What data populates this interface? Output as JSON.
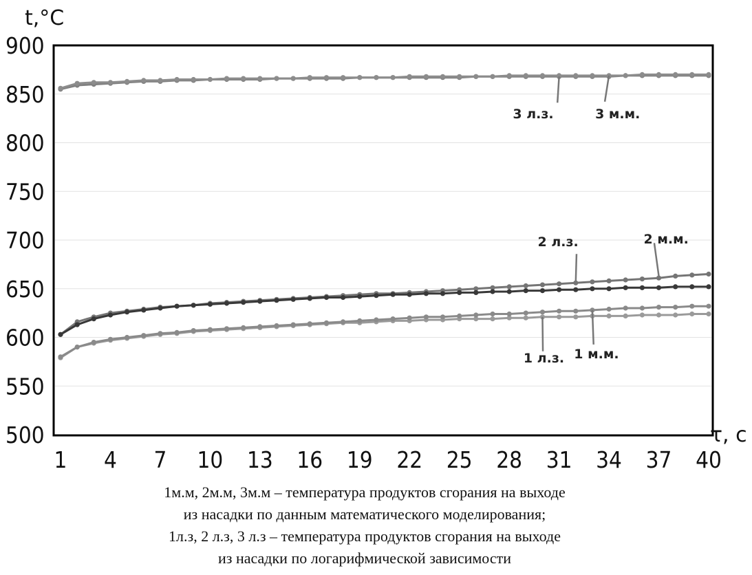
{
  "chart_data": {
    "type": "line",
    "ylabel": "t,°C",
    "xlabel": "τ, с",
    "ylim": [
      500,
      900
    ],
    "xlim": [
      1,
      40
    ],
    "grid": "horizontal",
    "yticks": [
      "500",
      "550",
      "600",
      "650",
      "700",
      "750",
      "800",
      "850",
      "900"
    ],
    "xticks": [
      "1",
      "4",
      "7",
      "10",
      "13",
      "16",
      "19",
      "22",
      "25",
      "28",
      "31",
      "34",
      "37",
      "40"
    ],
    "x": [
      1,
      2,
      3,
      4,
      5,
      6,
      7,
      8,
      9,
      10,
      11,
      12,
      13,
      14,
      15,
      16,
      17,
      18,
      19,
      20,
      21,
      22,
      23,
      24,
      25,
      26,
      27,
      28,
      29,
      30,
      31,
      32,
      33,
      34,
      35,
      36,
      37,
      38,
      39,
      40
    ],
    "series": [
      {
        "name": "3 л.з.",
        "color": "#808080",
        "values": [
          855,
          859,
          860,
          861,
          862,
          863,
          863,
          864,
          864,
          865,
          865,
          865,
          865,
          866,
          866,
          866,
          866,
          866,
          867,
          867,
          867,
          867,
          867,
          867,
          867,
          868,
          868,
          868,
          868,
          868,
          868,
          868,
          868,
          868,
          869,
          869,
          869,
          869,
          869,
          869
        ]
      },
      {
        "name": "3 м.м.",
        "color": "#8c8c8c",
        "values": [
          856,
          861,
          862,
          862,
          863,
          864,
          864,
          865,
          865,
          865,
          866,
          866,
          866,
          866,
          866,
          867,
          867,
          867,
          867,
          867,
          867,
          868,
          868,
          868,
          868,
          868,
          868,
          869,
          869,
          869,
          869,
          869,
          869,
          869,
          869,
          870,
          870,
          870,
          870,
          870
        ]
      },
      {
        "name": "2 л.з.",
        "color": "#757575",
        "values": [
          603,
          616,
          621,
          625,
          627,
          629,
          631,
          632,
          633,
          635,
          636,
          637,
          638,
          639,
          640,
          641,
          642,
          643,
          644,
          645,
          645,
          646,
          647,
          648,
          649,
          650,
          651,
          652,
          653,
          654,
          655,
          656,
          657,
          658,
          659,
          660,
          661,
          663,
          664,
          665
        ]
      },
      {
        "name": "2 м.м.",
        "color": "#383838",
        "values": [
          603,
          613,
          619,
          623,
          626,
          628,
          630,
          632,
          633,
          634,
          635,
          636,
          637,
          638,
          639,
          640,
          641,
          641,
          642,
          643,
          644,
          644,
          645,
          645,
          646,
          646,
          647,
          647,
          648,
          648,
          649,
          649,
          650,
          650,
          651,
          651,
          651,
          652,
          652,
          652
        ]
      },
      {
        "name": "1 л.з.",
        "color": "#9a9a9a",
        "values": [
          579,
          590,
          594,
          597,
          599,
          601,
          603,
          604,
          606,
          607,
          608,
          609,
          610,
          611,
          612,
          613,
          614,
          615,
          615,
          616,
          617,
          617,
          618,
          618,
          619,
          619,
          619,
          620,
          620,
          621,
          621,
          621,
          622,
          622,
          622,
          623,
          623,
          623,
          624,
          624
        ]
      },
      {
        "name": "1 м.м.",
        "color": "#8a8a8a",
        "values": [
          580,
          590,
          595,
          598,
          600,
          602,
          604,
          605,
          607,
          608,
          609,
          610,
          611,
          612,
          613,
          614,
          615,
          616,
          617,
          618,
          619,
          620,
          621,
          621,
          622,
          623,
          624,
          624,
          625,
          626,
          627,
          627,
          628,
          629,
          630,
          630,
          631,
          631,
          632,
          632
        ]
      }
    ],
    "annotations": [
      {
        "text": "3 л.з.",
        "series": 0,
        "x": 31,
        "value": 868
      },
      {
        "text": "3 м.м.",
        "series": 1,
        "x": 34,
        "value": 869
      },
      {
        "text": "2 л.з.",
        "series": 2,
        "x": 32,
        "value": 656
      },
      {
        "text": "2 м.м.",
        "series": 3,
        "x": 37,
        "value": 663
      },
      {
        "text": "1 л.з.",
        "series": 4,
        "x": 30,
        "value": 621
      },
      {
        "text": "1 м.м.",
        "series": 5,
        "x": 33,
        "value": 628
      }
    ]
  },
  "caption": [
    "1м.м, 2м.м, 3м.м – температура продуктов сгорания на выходе",
    "из насадки по данным математического моделирования;",
    "1л.з, 2 л.з, 3 л.з – температура продуктов сгорания на выходе",
    "из насадки по логарифмической зависимости"
  ]
}
